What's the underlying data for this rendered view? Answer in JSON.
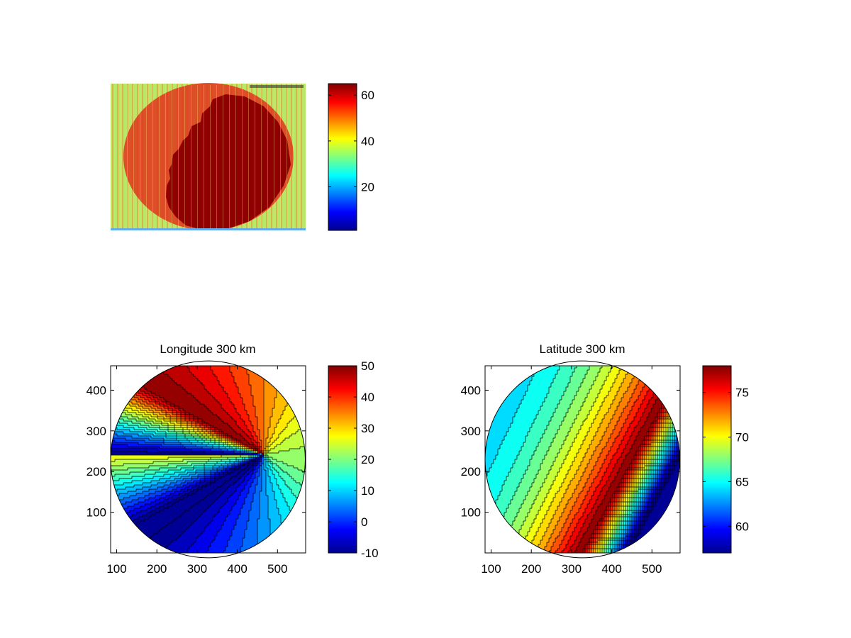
{
  "chart_data": [
    {
      "type": "heatmap",
      "title": "",
      "xlabel": "",
      "ylabel": "",
      "colormap": "jet",
      "axes_visible": false,
      "description_values": {
        "background_value": 42,
        "disk_value": 52,
        "dark_region_value": 65
      },
      "colorbar": {
        "clim": [
          1,
          65
        ],
        "ticks": [
          20,
          40,
          60
        ]
      }
    },
    {
      "type": "heatmap",
      "subtype": "filled-contour",
      "title": "Longitude 300 km",
      "xlabel": "",
      "ylabel": "",
      "colormap": "jet",
      "xlim": [
        85,
        570
      ],
      "ylim": [
        0,
        460
      ],
      "xticks": [
        100,
        200,
        300,
        400,
        500
      ],
      "yticks": [
        100,
        200,
        300,
        400
      ],
      "disk": {
        "center": [
          327,
          230
        ],
        "radius": 242
      },
      "pole": [
        462,
        244
      ],
      "field_center_value": 22,
      "colorbar": {
        "clim": [
          -10,
          50
        ],
        "ticks": [
          -10,
          0,
          10,
          20,
          30,
          40,
          50
        ]
      }
    },
    {
      "type": "heatmap",
      "subtype": "filled-contour",
      "title": "Latitude 300 km",
      "xlabel": "",
      "ylabel": "",
      "colormap": "jet",
      "xlim": [
        85,
        570
      ],
      "ylim": [
        0,
        460
      ],
      "xticks": [
        100,
        200,
        300,
        400,
        500
      ],
      "yticks": [
        100,
        200,
        300,
        400
      ],
      "disk": {
        "center": [
          327,
          230
        ],
        "radius": 242
      },
      "field_range": [
        57,
        78
      ],
      "colorbar": {
        "clim": [
          57,
          78
        ],
        "ticks": [
          60,
          65,
          70,
          75
        ]
      }
    }
  ]
}
